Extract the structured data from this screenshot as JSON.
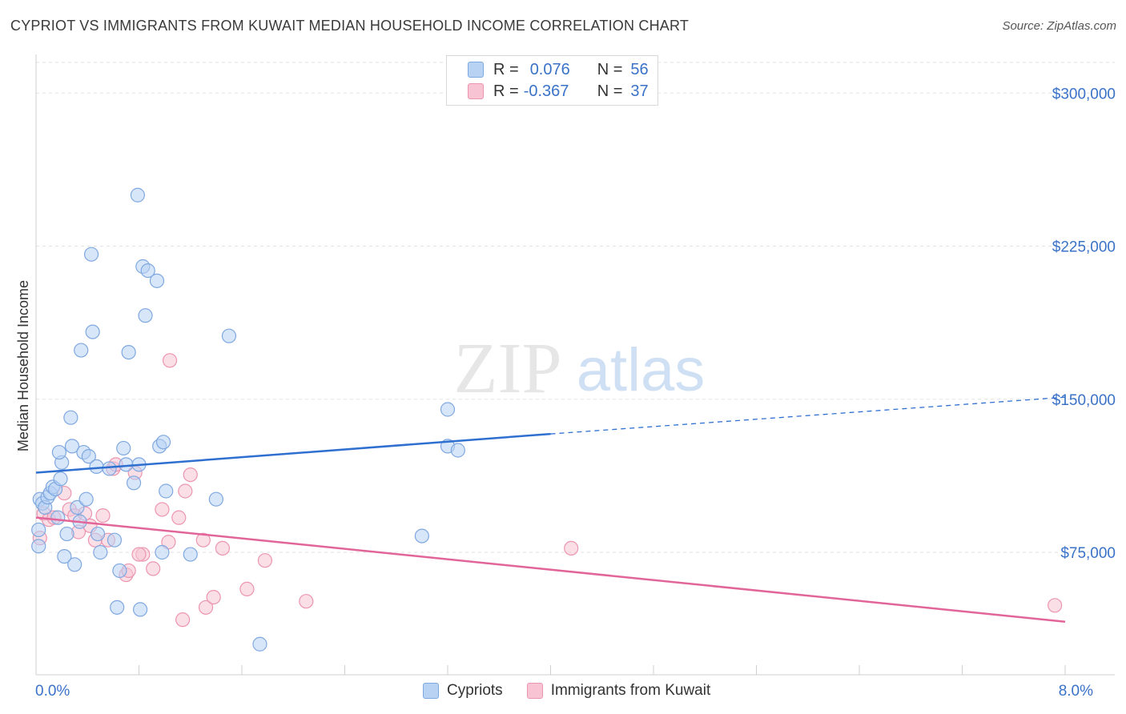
{
  "title": "CYPRIOT VS IMMIGRANTS FROM KUWAIT MEDIAN HOUSEHOLD INCOME CORRELATION CHART",
  "source": "Source: ZipAtlas.com",
  "watermark": {
    "zip": "ZIP",
    "atlas": "atlas"
  },
  "legend": {
    "r_label": "R =",
    "n_label": "N =",
    "series": [
      {
        "name": "Cypriots",
        "r": "0.076",
        "n": "56",
        "color": "#b8d2f4"
      },
      {
        "name": "Immigrants from Kuwait",
        "r": "-0.367",
        "n": "37",
        "color": "#f8c4d4"
      }
    ]
  },
  "colors": {
    "blue_fill": "#b8d2f4",
    "blue_stroke": "#7fa8e0",
    "blue_line": "#2f6fd0",
    "pink_fill": "#f8c4d4",
    "pink_stroke": "#ec95b0",
    "pink_line": "#e2659a",
    "axis_text": "#3a72c8",
    "grid": "#e2e2e2"
  },
  "chart_data": {
    "type": "scatter",
    "ylabel": "Median Household Income",
    "xlim": [
      0,
      8
    ],
    "ylim": [
      15000,
      315000
    ],
    "x_tick_labels": [
      {
        "x": 0,
        "label": "0.0%"
      },
      {
        "x": 8,
        "label": "8.0%"
      }
    ],
    "y_ticks": [
      {
        "y": 75000,
        "label": "$75,000"
      },
      {
        "y": 150000,
        "label": "$150,000"
      },
      {
        "y": 225000,
        "label": "$225,000"
      },
      {
        "y": 300000,
        "label": "$300,000"
      }
    ],
    "grid": "horizontal dashed",
    "series": [
      {
        "name": "Cypriots",
        "points": [
          [
            0.03,
            101000
          ],
          [
            0.05,
            99000
          ],
          [
            0.07,
            97000
          ],
          [
            0.09,
            102000
          ],
          [
            0.11,
            104000
          ],
          [
            0.13,
            107000
          ],
          [
            0.15,
            106000
          ],
          [
            0.17,
            92000
          ],
          [
            0.19,
            111000
          ],
          [
            0.2,
            119000
          ],
          [
            0.18,
            124000
          ],
          [
            0.22,
            73000
          ],
          [
            0.24,
            84000
          ],
          [
            0.27,
            141000
          ],
          [
            0.28,
            127000
          ],
          [
            0.3,
            69000
          ],
          [
            0.32,
            97000
          ],
          [
            0.34,
            90000
          ],
          [
            0.35,
            174000
          ],
          [
            0.37,
            124000
          ],
          [
            0.39,
            101000
          ],
          [
            0.41,
            122000
          ],
          [
            0.43,
            221000
          ],
          [
            0.44,
            183000
          ],
          [
            0.47,
            117000
          ],
          [
            0.48,
            84000
          ],
          [
            0.5,
            75000
          ],
          [
            0.57,
            116000
          ],
          [
            0.61,
            81000
          ],
          [
            0.63,
            48000
          ],
          [
            0.65,
            66000
          ],
          [
            0.68,
            126000
          ],
          [
            0.7,
            118000
          ],
          [
            0.72,
            173000
          ],
          [
            0.76,
            109000
          ],
          [
            0.79,
            250000
          ],
          [
            0.8,
            118000
          ],
          [
            0.81,
            47000
          ],
          [
            0.83,
            215000
          ],
          [
            0.85,
            191000
          ],
          [
            0.87,
            213000
          ],
          [
            0.94,
            208000
          ],
          [
            0.96,
            127000
          ],
          [
            0.98,
            75000
          ],
          [
            0.99,
            129000
          ],
          [
            1.01,
            105000
          ],
          [
            1.2,
            74000
          ],
          [
            1.4,
            101000
          ],
          [
            1.5,
            181000
          ],
          [
            1.74,
            30000
          ],
          [
            3.0,
            83000
          ],
          [
            3.2,
            145000
          ],
          [
            3.2,
            127000
          ],
          [
            3.28,
            125000
          ],
          [
            0.02,
            86000
          ],
          [
            0.02,
            78000
          ]
        ]
      },
      {
        "name": "Immigrants from Kuwait",
        "points": [
          [
            0.03,
            82000
          ],
          [
            0.06,
            94000
          ],
          [
            0.1,
            91000
          ],
          [
            0.14,
            92000
          ],
          [
            0.22,
            104000
          ],
          [
            0.26,
            96000
          ],
          [
            0.3,
            93000
          ],
          [
            0.33,
            85000
          ],
          [
            0.38,
            94000
          ],
          [
            0.42,
            88000
          ],
          [
            0.46,
            81000
          ],
          [
            0.52,
            93000
          ],
          [
            0.56,
            81000
          ],
          [
            0.6,
            116000
          ],
          [
            0.62,
            118000
          ],
          [
            0.7,
            64000
          ],
          [
            0.72,
            66000
          ],
          [
            0.77,
            114000
          ],
          [
            0.83,
            74000
          ],
          [
            0.91,
            67000
          ],
          [
            0.98,
            96000
          ],
          [
            1.03,
            80000
          ],
          [
            1.04,
            169000
          ],
          [
            1.11,
            92000
          ],
          [
            1.14,
            42000
          ],
          [
            1.16,
            105000
          ],
          [
            1.2,
            113000
          ],
          [
            1.3,
            81000
          ],
          [
            1.32,
            48000
          ],
          [
            1.38,
            53000
          ],
          [
            1.45,
            77000
          ],
          [
            1.64,
            57000
          ],
          [
            1.78,
            71000
          ],
          [
            2.1,
            51000
          ],
          [
            4.16,
            77000
          ],
          [
            7.92,
            49000
          ],
          [
            0.8,
            74000
          ]
        ]
      }
    ],
    "trend_lines": [
      {
        "series": "Cypriots",
        "x": [
          0,
          4.0
        ],
        "y": [
          114000,
          133000
        ],
        "extended_to": [
          8.0,
          151000
        ]
      },
      {
        "series": "Immigrants from Kuwait",
        "x": [
          0,
          8.0
        ],
        "y": [
          92000,
          41000
        ]
      }
    ]
  }
}
